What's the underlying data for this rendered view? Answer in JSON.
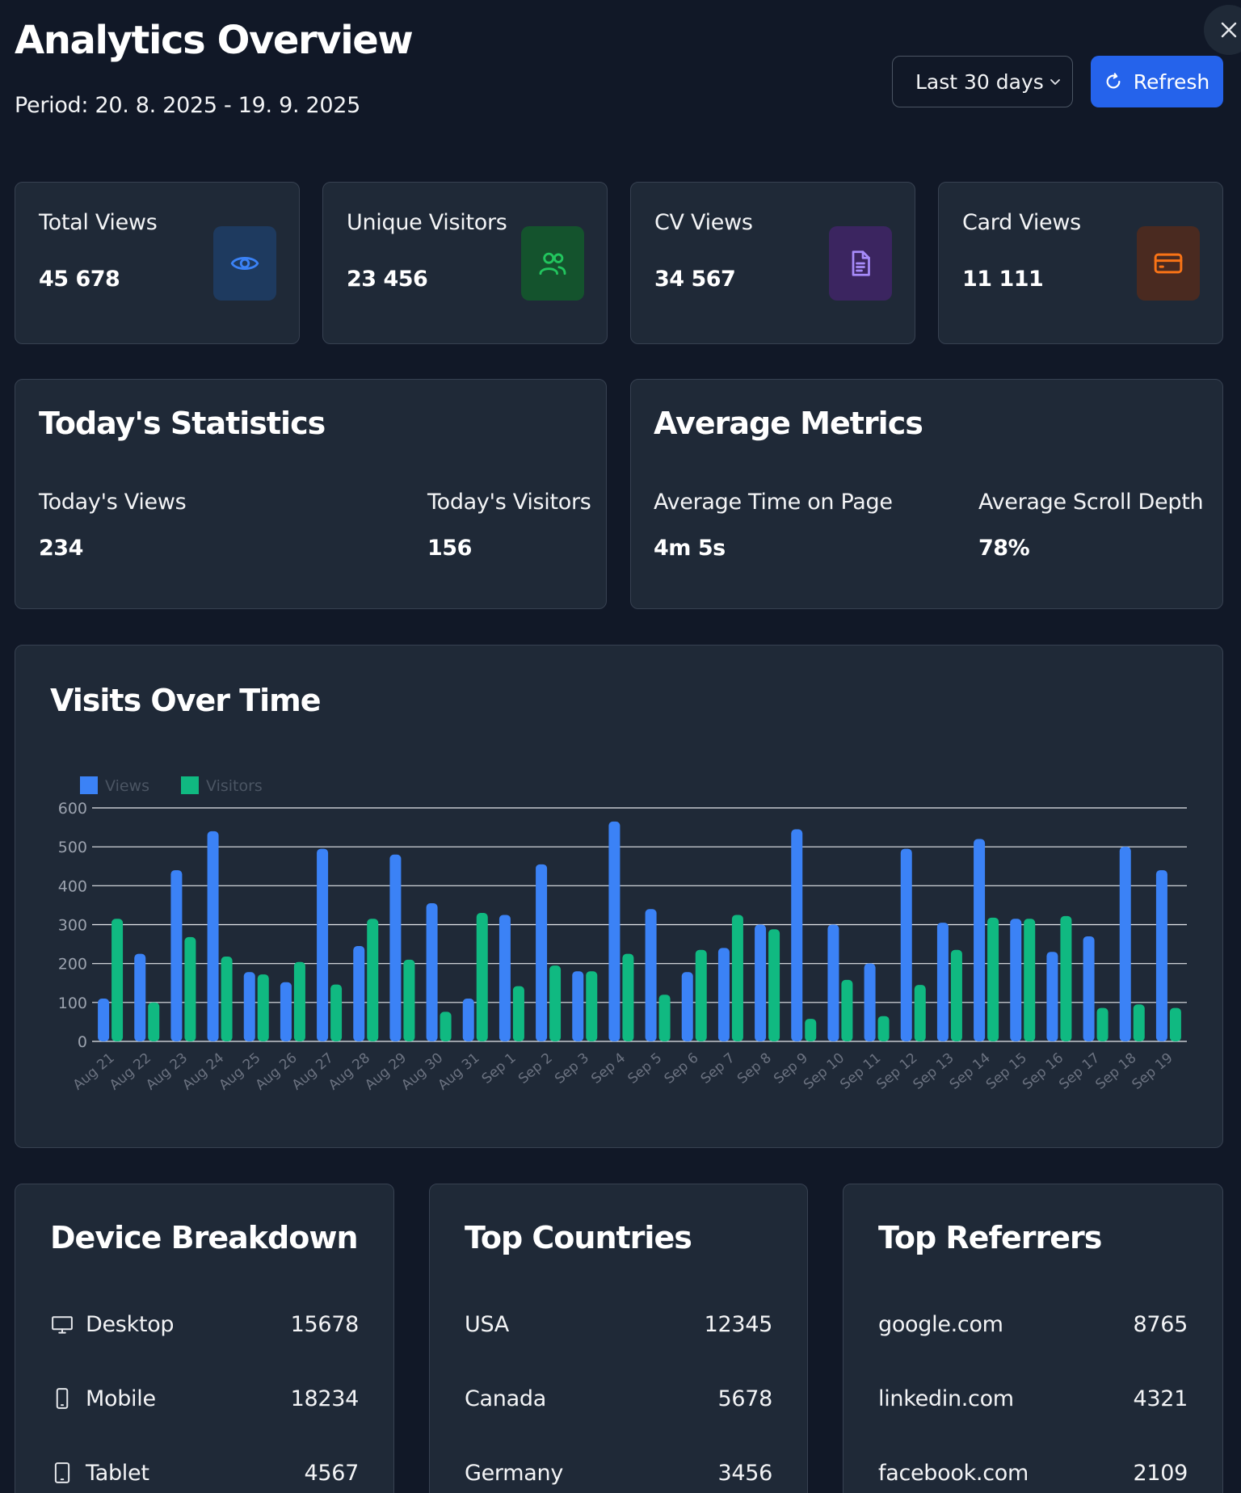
{
  "header": {
    "title": "Analytics Overview",
    "period": "Period: 20. 8. 2025 - 19. 9. 2025",
    "range_value": "Last 30 days",
    "refresh_label": "Refresh",
    "close_icon": "close-icon"
  },
  "stats": [
    {
      "label": "Total Views",
      "value": "45 678",
      "icon": "eye-icon",
      "icon_color": "#3b82f6",
      "icon_bg": "#1e3a5f"
    },
    {
      "label": "Unique Visitors",
      "value": "23 456",
      "icon": "users-icon",
      "icon_color": "#22c55e",
      "icon_bg": "#14532d"
    },
    {
      "label": "CV Views",
      "value": "34 567",
      "icon": "document-icon",
      "icon_color": "#a78bfa",
      "icon_bg": "#3b2560"
    },
    {
      "label": "Card Views",
      "value": "11 111",
      "icon": "credit-card-icon",
      "icon_color": "#f97316",
      "icon_bg": "#4a2a20"
    }
  ],
  "today": {
    "title": "Today's Statistics",
    "views_label": "Today's Views",
    "views_value": "234",
    "visitors_label": "Today's Visitors",
    "visitors_value": "156"
  },
  "averages": {
    "title": "Average Metrics",
    "time_label": "Average Time on Page",
    "time_value": "4m 5s",
    "scroll_label": "Average Scroll Depth",
    "scroll_value": "78%"
  },
  "chart_panel": {
    "title": "Visits Over Time"
  },
  "chart_data": {
    "type": "bar",
    "title": "Visits Over Time",
    "categories": [
      "Aug 21",
      "Aug 22",
      "Aug 23",
      "Aug 24",
      "Aug 25",
      "Aug 26",
      "Aug 27",
      "Aug 28",
      "Aug 29",
      "Aug 30",
      "Aug 31",
      "Sep 1",
      "Sep 2",
      "Sep 3",
      "Sep 4",
      "Sep 5",
      "Sep 6",
      "Sep 7",
      "Sep 8",
      "Sep 9",
      "Sep 10",
      "Sep 11",
      "Sep 12",
      "Sep 13",
      "Sep 14",
      "Sep 15",
      "Sep 16",
      "Sep 17",
      "Sep 18",
      "Sep 19"
    ],
    "series": [
      {
        "name": "Views",
        "color": "#3b82f6",
        "values": [
          110,
          225,
          440,
          540,
          178,
          152,
          495,
          245,
          480,
          355,
          110,
          325,
          455,
          180,
          565,
          340,
          178,
          240,
          300,
          545,
          300,
          200,
          495,
          305,
          520,
          315,
          230,
          270,
          500,
          440
        ]
      },
      {
        "name": "Visitors",
        "color": "#10b981",
        "values": [
          315,
          100,
          268,
          218,
          172,
          204,
          146,
          315,
          210,
          76,
          330,
          142,
          195,
          180,
          225,
          120,
          235,
          325,
          288,
          58,
          158,
          65,
          145,
          235,
          318,
          315,
          322,
          86,
          95,
          86
        ]
      }
    ],
    "ylim": [
      0,
      600
    ],
    "yticks": [
      0,
      100,
      200,
      300,
      400,
      500,
      600
    ],
    "legend_position": "top-left",
    "grid": true
  },
  "devices": {
    "title": "Device Breakdown",
    "rows": [
      {
        "label": "Desktop",
        "value": "15678",
        "icon": "desktop-icon"
      },
      {
        "label": "Mobile",
        "value": "18234",
        "icon": "mobile-icon"
      },
      {
        "label": "Tablet",
        "value": "4567",
        "icon": "tablet-icon"
      }
    ]
  },
  "countries": {
    "title": "Top Countries",
    "rows": [
      {
        "label": "USA",
        "value": "12345"
      },
      {
        "label": "Canada",
        "value": "5678"
      },
      {
        "label": "Germany",
        "value": "3456"
      }
    ]
  },
  "referrers": {
    "title": "Top Referrers",
    "rows": [
      {
        "label": "google.com",
        "value": "8765"
      },
      {
        "label": "linkedin.com",
        "value": "4321"
      },
      {
        "label": "facebook.com",
        "value": "2109"
      }
    ]
  }
}
